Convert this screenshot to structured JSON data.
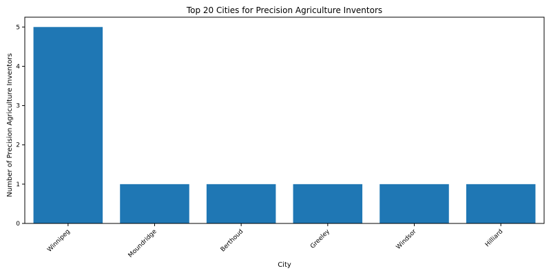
{
  "chart_data": {
    "type": "bar",
    "title": "Top 20 Cities for Precision Agriculture Inventors",
    "xlabel": "City",
    "ylabel": "Number of Precision Agriculture Inventors",
    "categories": [
      "Winnipeg",
      "Moundridge",
      "Berthoud",
      "Greeley",
      "Windsor",
      "Hilliard"
    ],
    "values": [
      5,
      1,
      1,
      1,
      1,
      1
    ],
    "ylim": [
      0,
      5.25
    ],
    "yticks": [
      0,
      1,
      2,
      3,
      4,
      5
    ],
    "bar_color": "#1f77b4",
    "grid": false,
    "legend": "none"
  }
}
